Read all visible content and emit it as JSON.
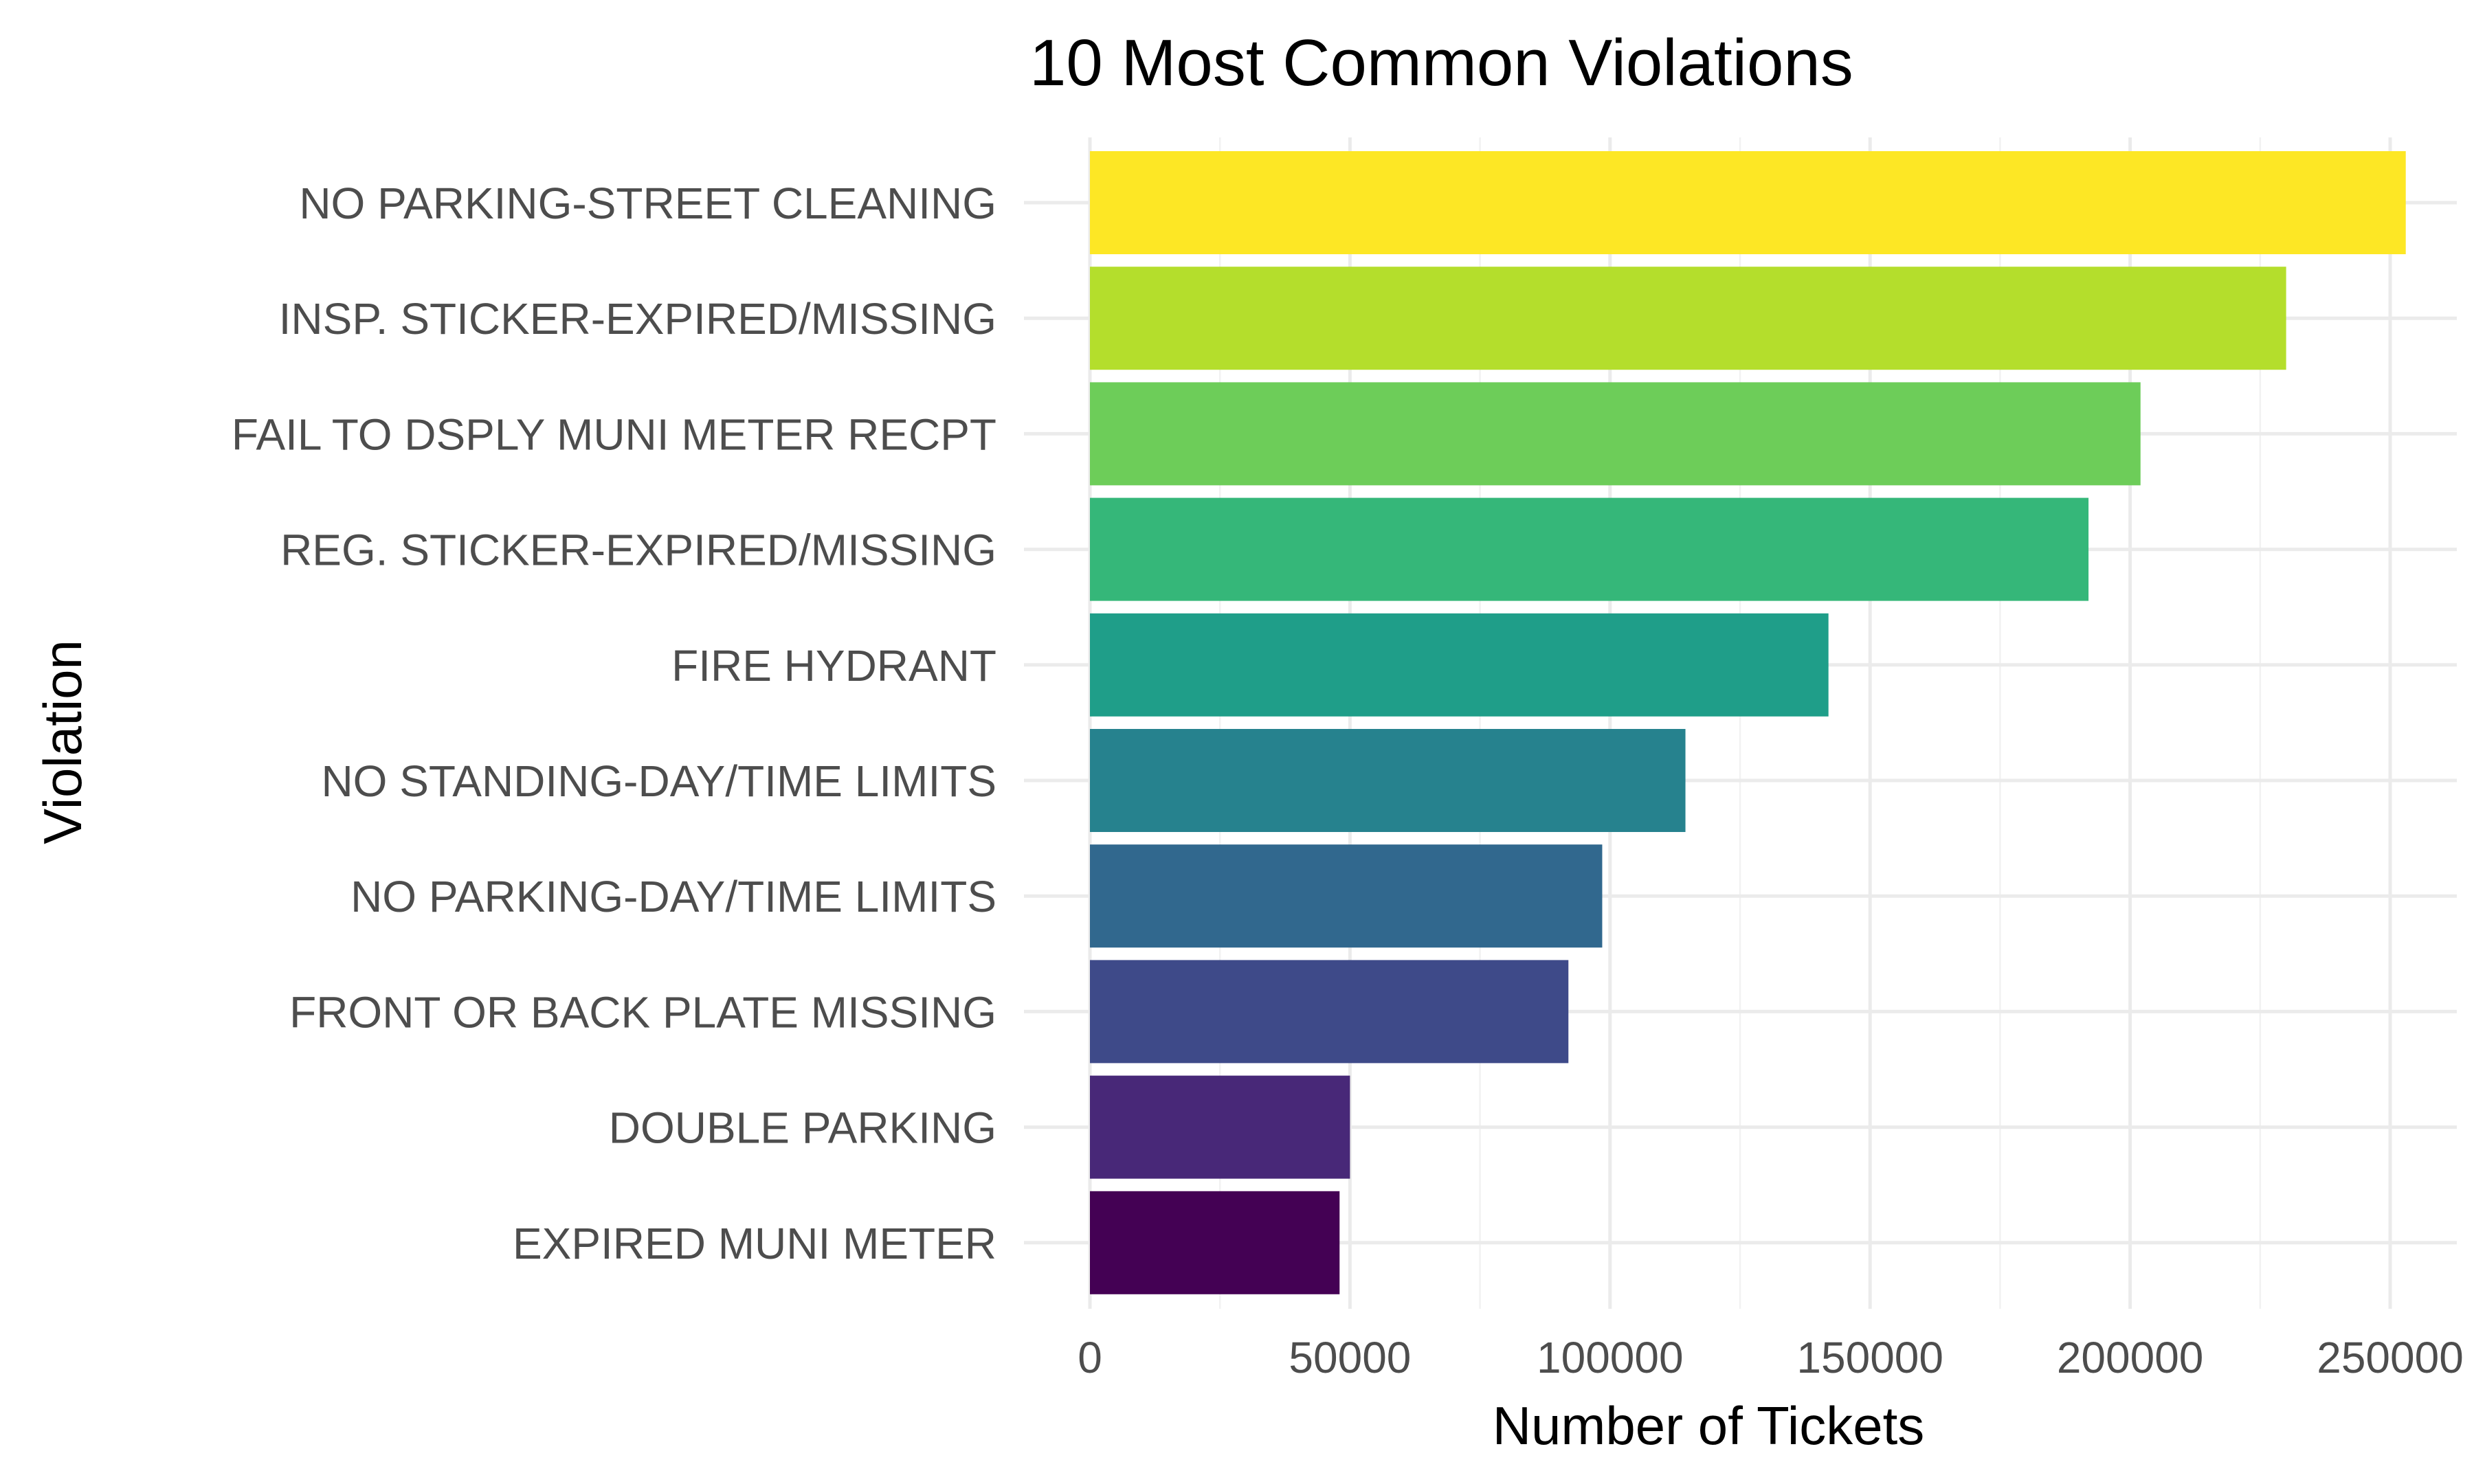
{
  "chart_data": {
    "type": "bar",
    "orientation": "horizontal",
    "title": "10 Most Common Violations",
    "xlabel": "Number of Tickets",
    "ylabel": "Violation",
    "xlim": [
      0,
      265000
    ],
    "x_ticks": [
      "0",
      "50000",
      "100000",
      "150000",
      "200000",
      "250000"
    ],
    "x_tick_values": [
      0,
      50000,
      100000,
      150000,
      200000,
      250000
    ],
    "grid": true,
    "legend": "none",
    "categories": [
      "NO PARKING-STREET CLEANING",
      "INSP. STICKER-EXPIRED/MISSING",
      "FAIL TO DSPLY MUNI METER RECPT",
      "REG. STICKER-EXPIRED/MISSING",
      "FIRE HYDRANT",
      "NO STANDING-DAY/TIME LIMITS",
      "NO PARKING-DAY/TIME LIMITS",
      "FRONT OR BACK PLATE MISSING",
      "DOUBLE PARKING",
      "EXPIRED MUNI METER"
    ],
    "values": [
      253000,
      230000,
      202000,
      192000,
      142000,
      114500,
      98500,
      92000,
      50000,
      48000
    ],
    "colors": [
      "#FDE725",
      "#B4DE2C",
      "#6DCD59",
      "#35B779",
      "#1F9E89",
      "#26828E",
      "#31688E",
      "#3E4A89",
      "#482878",
      "#440154"
    ]
  }
}
